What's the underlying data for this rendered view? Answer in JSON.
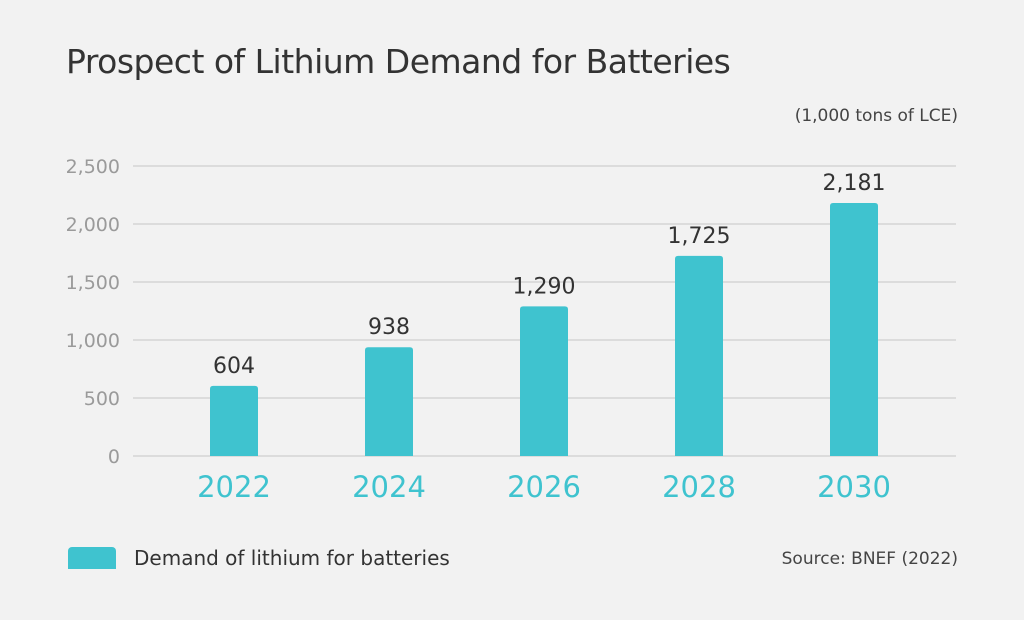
{
  "chart_data": {
    "type": "bar",
    "title": "Prospect of Lithium Demand for Batteries",
    "unit_label": "(1,000 tons of LCE)",
    "categories": [
      "2022",
      "2024",
      "2026",
      "2028",
      "2030"
    ],
    "series": [
      {
        "name": "Demand of lithium for batteries",
        "values": [
          604,
          938,
          1290,
          1725,
          2181
        ]
      }
    ],
    "data_labels": [
      "604",
      "938",
      "1,290",
      "1,725",
      "2,181"
    ],
    "y_ticks": [
      "0",
      "500",
      "1,000",
      "1,500",
      "2,000",
      "2,500"
    ],
    "ylim": [
      0,
      2500
    ],
    "grid": true,
    "legend": "bottom-left",
    "source": "Source: BNEF (2022)",
    "colors": {
      "bar": "#3fc3cf",
      "category_label": "#3fc3cf",
      "grid": "#d4d4d4",
      "background": "#f2f2f2"
    }
  }
}
